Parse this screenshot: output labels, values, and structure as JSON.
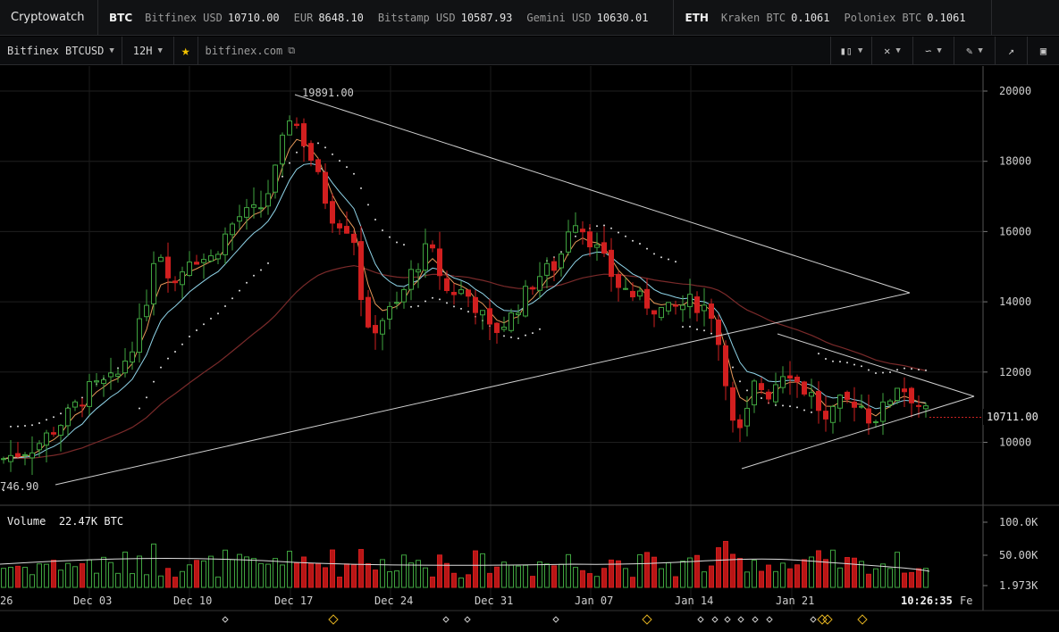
{
  "app": {
    "title": "Cryptowatch"
  },
  "ticker": {
    "btc": {
      "symbol": "BTC",
      "items": [
        {
          "label": "Bitfinex USD",
          "value": "10710.00"
        },
        {
          "label": "EUR",
          "value": "8648.10"
        },
        {
          "label": "Bitstamp USD",
          "value": "10587.93"
        },
        {
          "label": "Gemini USD",
          "value": "10630.01"
        }
      ]
    },
    "eth": {
      "symbol": "ETH",
      "items": [
        {
          "label": "Kraken BTC",
          "value": "0.1061"
        },
        {
          "label": "Poloniex BTC",
          "value": "0.1061"
        }
      ]
    }
  },
  "toolbar": {
    "market": "Bitfinex BTCUSD",
    "interval": "12H",
    "exchange_link": "bitfinex.com",
    "icons": [
      "candles-icon",
      "crosshair-icon",
      "line-type-icon",
      "draw-icon",
      "expand-icon",
      "screenshot-icon"
    ]
  },
  "chart": {
    "high_label": "19891.00",
    "low_label": "746.90",
    "last_price": "10711.00",
    "price_ticks": [
      "20000",
      "18000",
      "16000",
      "14000",
      "12000",
      "10000"
    ],
    "volume_label": "Volume",
    "volume_value": "22.47K BTC",
    "volume_ticks": [
      "100.0K",
      "50.00K",
      "1.973K"
    ],
    "date_ticks": [
      "26",
      "Dec 03",
      "Dec 10",
      "Dec 17",
      "Dec 24",
      "Dec 31",
      "Jan 07",
      "Jan 14",
      "Jan 21",
      "Fe"
    ],
    "current_time": "10:26:35",
    "colors": {
      "up": "#3fa33f",
      "down": "#d11f1f",
      "ema_fast": "#e89a5a",
      "ema_slow": "#8fd4e8",
      "sma_long": "#7a2a2a",
      "trend": "#cfcfcf"
    }
  },
  "chart_data": {
    "type": "candlestick",
    "title": "Bitfinex BTCUSD 12H",
    "ylim": [
      8500,
      20500
    ],
    "ohlc_close_sample": [
      [
        "Nov 26",
        9500
      ],
      [
        "Dec 03",
        11500
      ],
      [
        "Dec 07",
        15500
      ],
      [
        "Dec 10",
        15300
      ],
      [
        "Dec 13",
        16800
      ],
      [
        "Dec 17",
        19300
      ],
      [
        "Dec 20",
        16500
      ],
      [
        "Dec 22",
        13500
      ],
      [
        "Dec 24",
        14000
      ],
      [
        "Dec 27",
        15800
      ],
      [
        "Dec 31",
        13500
      ],
      [
        "Jan 04",
        15000
      ],
      [
        "Jan 07",
        16500
      ],
      [
        "Jan 10",
        14500
      ],
      [
        "Jan 14",
        13800
      ],
      [
        "Jan 16",
        10500
      ],
      [
        "Jan 19",
        11500
      ],
      [
        "Jan 21",
        11200
      ],
      [
        "Jan 24",
        11000
      ],
      [
        "Jan 27",
        11600
      ],
      [
        "Jan 29",
        10711
      ]
    ]
  }
}
